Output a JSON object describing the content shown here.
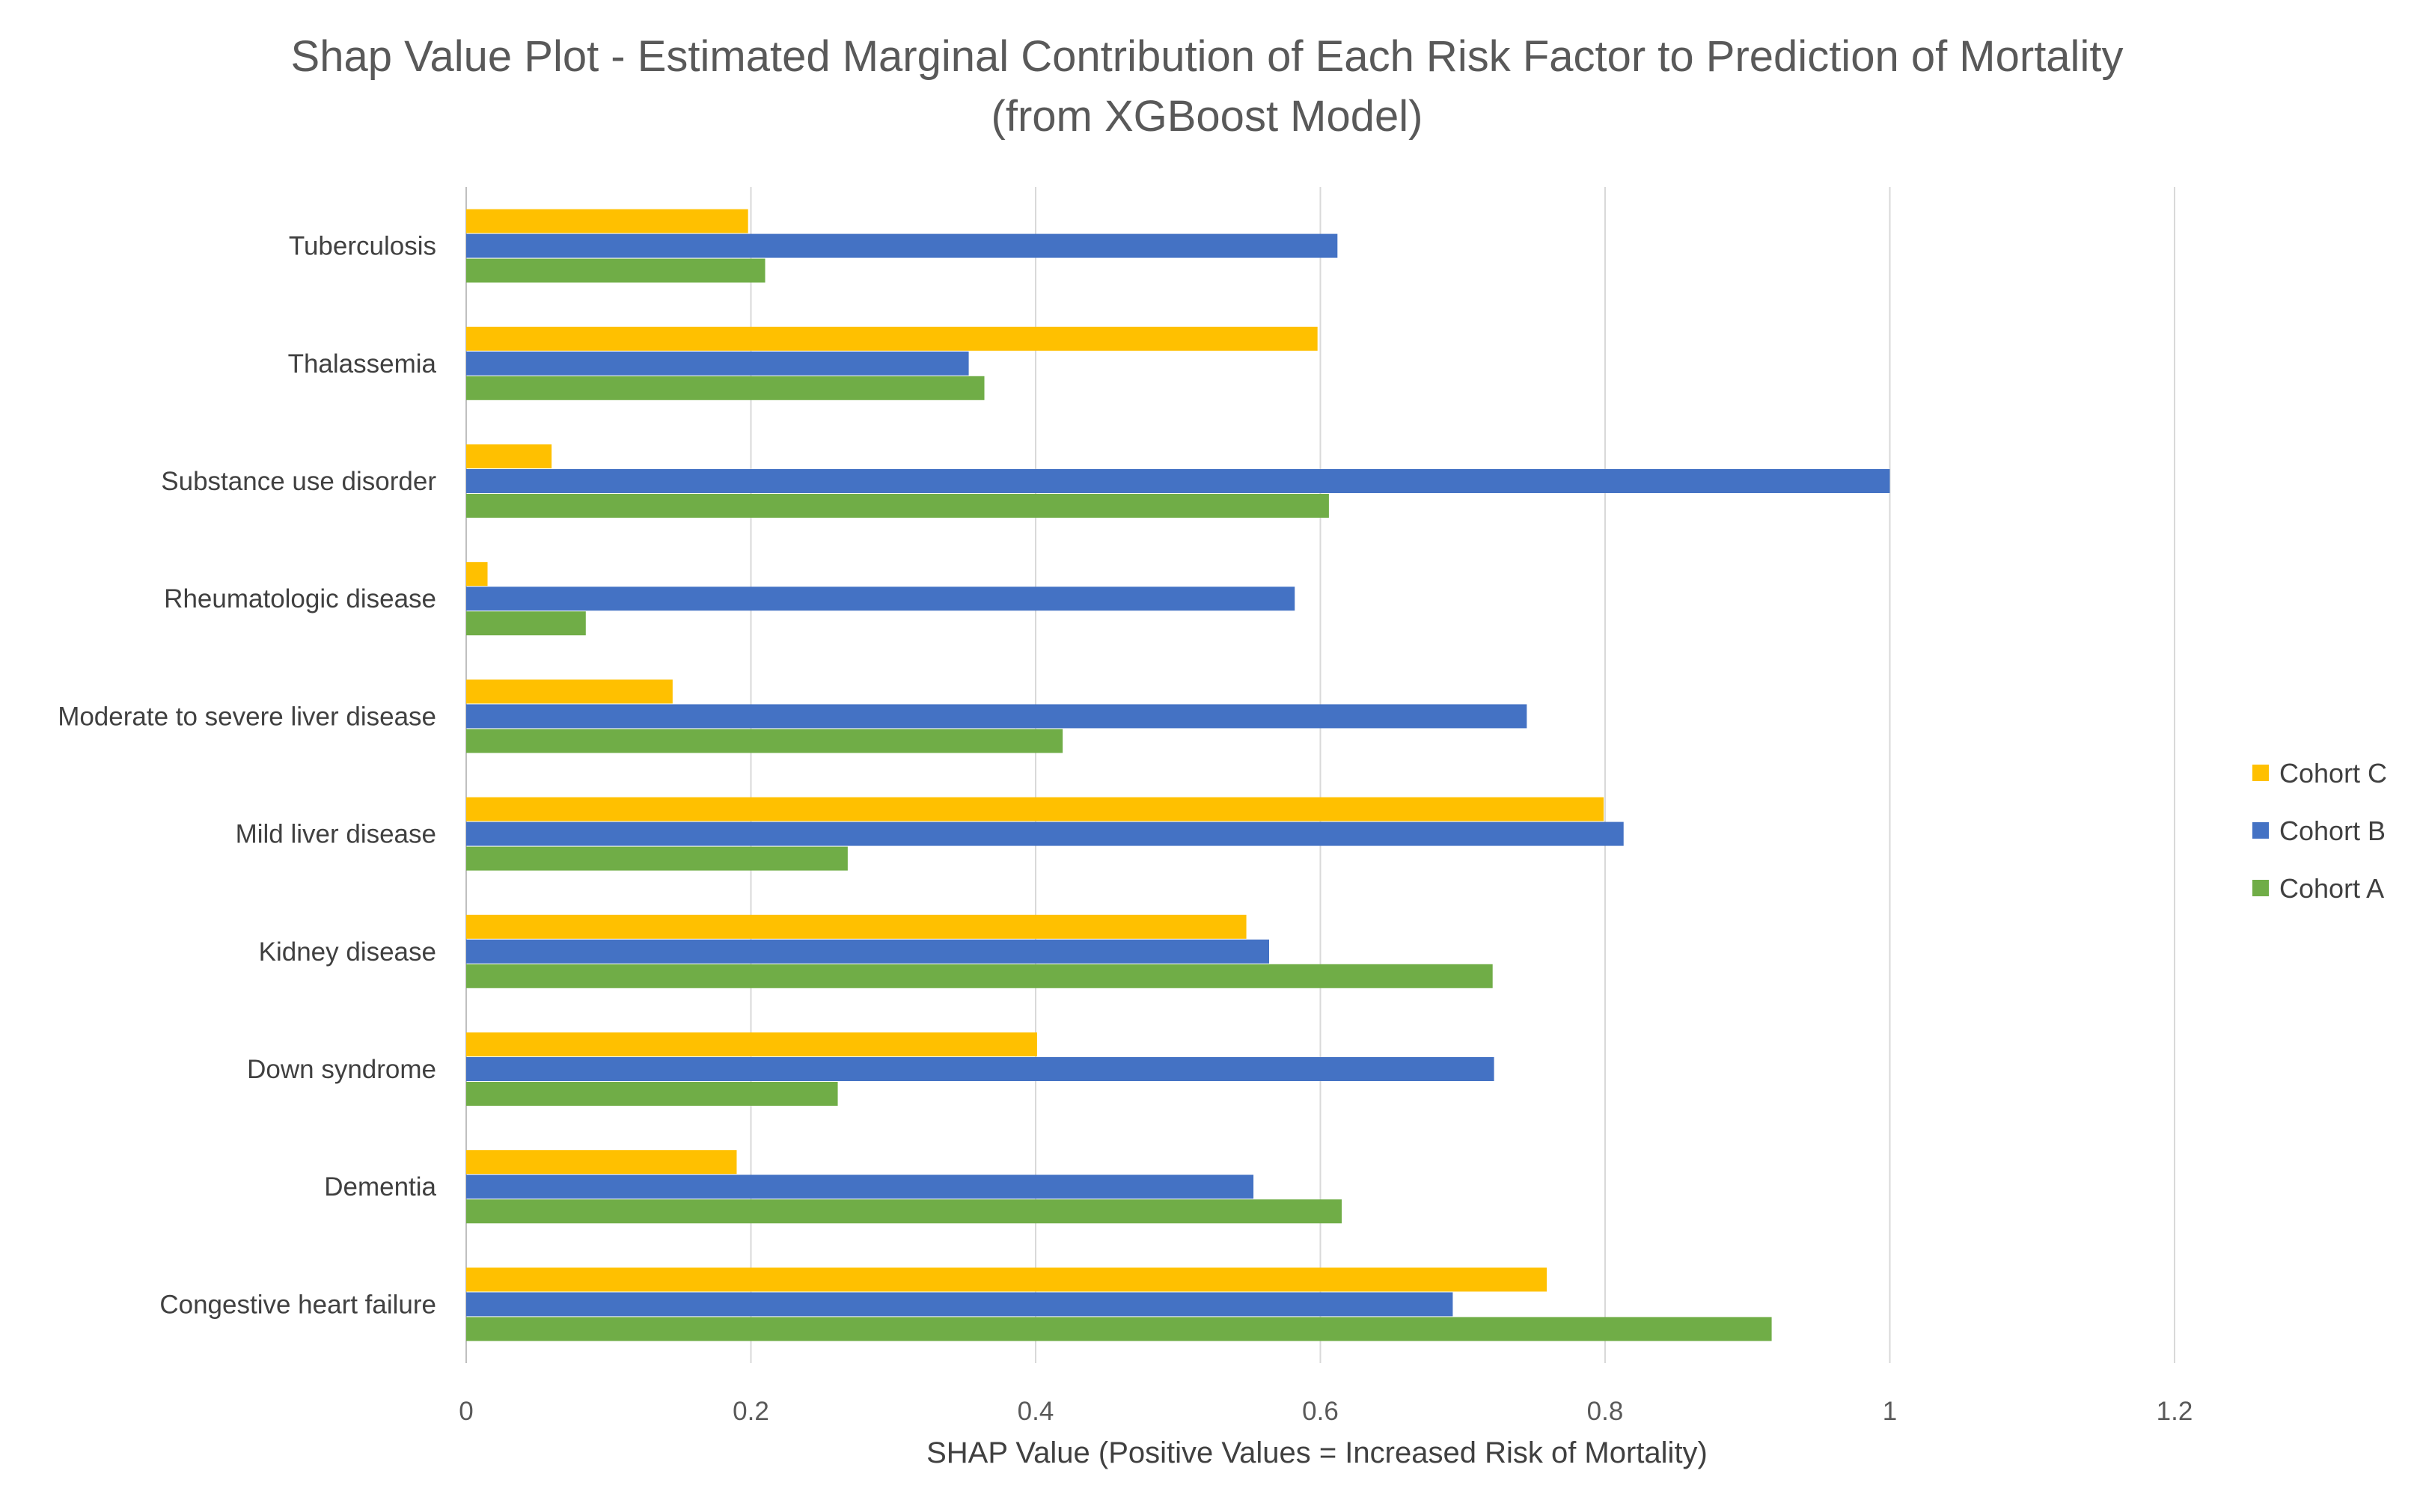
{
  "chart_data": {
    "type": "bar",
    "orientation": "horizontal",
    "title_lines": [
      "Shap Value Plot - Estimated Marginal Contribution of Each Risk Factor to Prediction of Mortality",
      "(from XGBoost Model)"
    ],
    "xlabel": "SHAP Value (Positive Values = Increased Risk of Mortality)",
    "ylabel": "",
    "xlim": [
      0,
      1.2
    ],
    "xticks": [
      0,
      0.2,
      0.4,
      0.6,
      0.8,
      1,
      1.2
    ],
    "xtick_labels": [
      "0",
      "0.2",
      "0.4",
      "0.6",
      "0.8",
      "1",
      "1.2"
    ],
    "grid": "vertical",
    "legend_position": "right",
    "categories": [
      "Tuberculosis",
      "Thalassemia",
      "Substance use disorder",
      "Rheumatologic disease",
      "Moderate to severe liver disease",
      "Mild liver disease",
      "Kidney disease",
      "Down syndrome",
      "Dementia",
      "Congestive heart failure"
    ],
    "series": [
      {
        "name": "Cohort C",
        "color": "#FFC000",
        "values": [
          0.198,
          0.598,
          0.06,
          0.015,
          0.145,
          0.799,
          0.548,
          0.401,
          0.19,
          0.759
        ]
      },
      {
        "name": "Cohort B",
        "color": "#4472C4",
        "values": [
          0.612,
          0.353,
          1.0,
          0.582,
          0.745,
          0.813,
          0.564,
          0.722,
          0.553,
          0.693
        ]
      },
      {
        "name": "Cohort A",
        "color": "#70AD47",
        "values": [
          0.21,
          0.364,
          0.606,
          0.084,
          0.419,
          0.268,
          0.721,
          0.261,
          0.615,
          0.917
        ]
      }
    ]
  }
}
